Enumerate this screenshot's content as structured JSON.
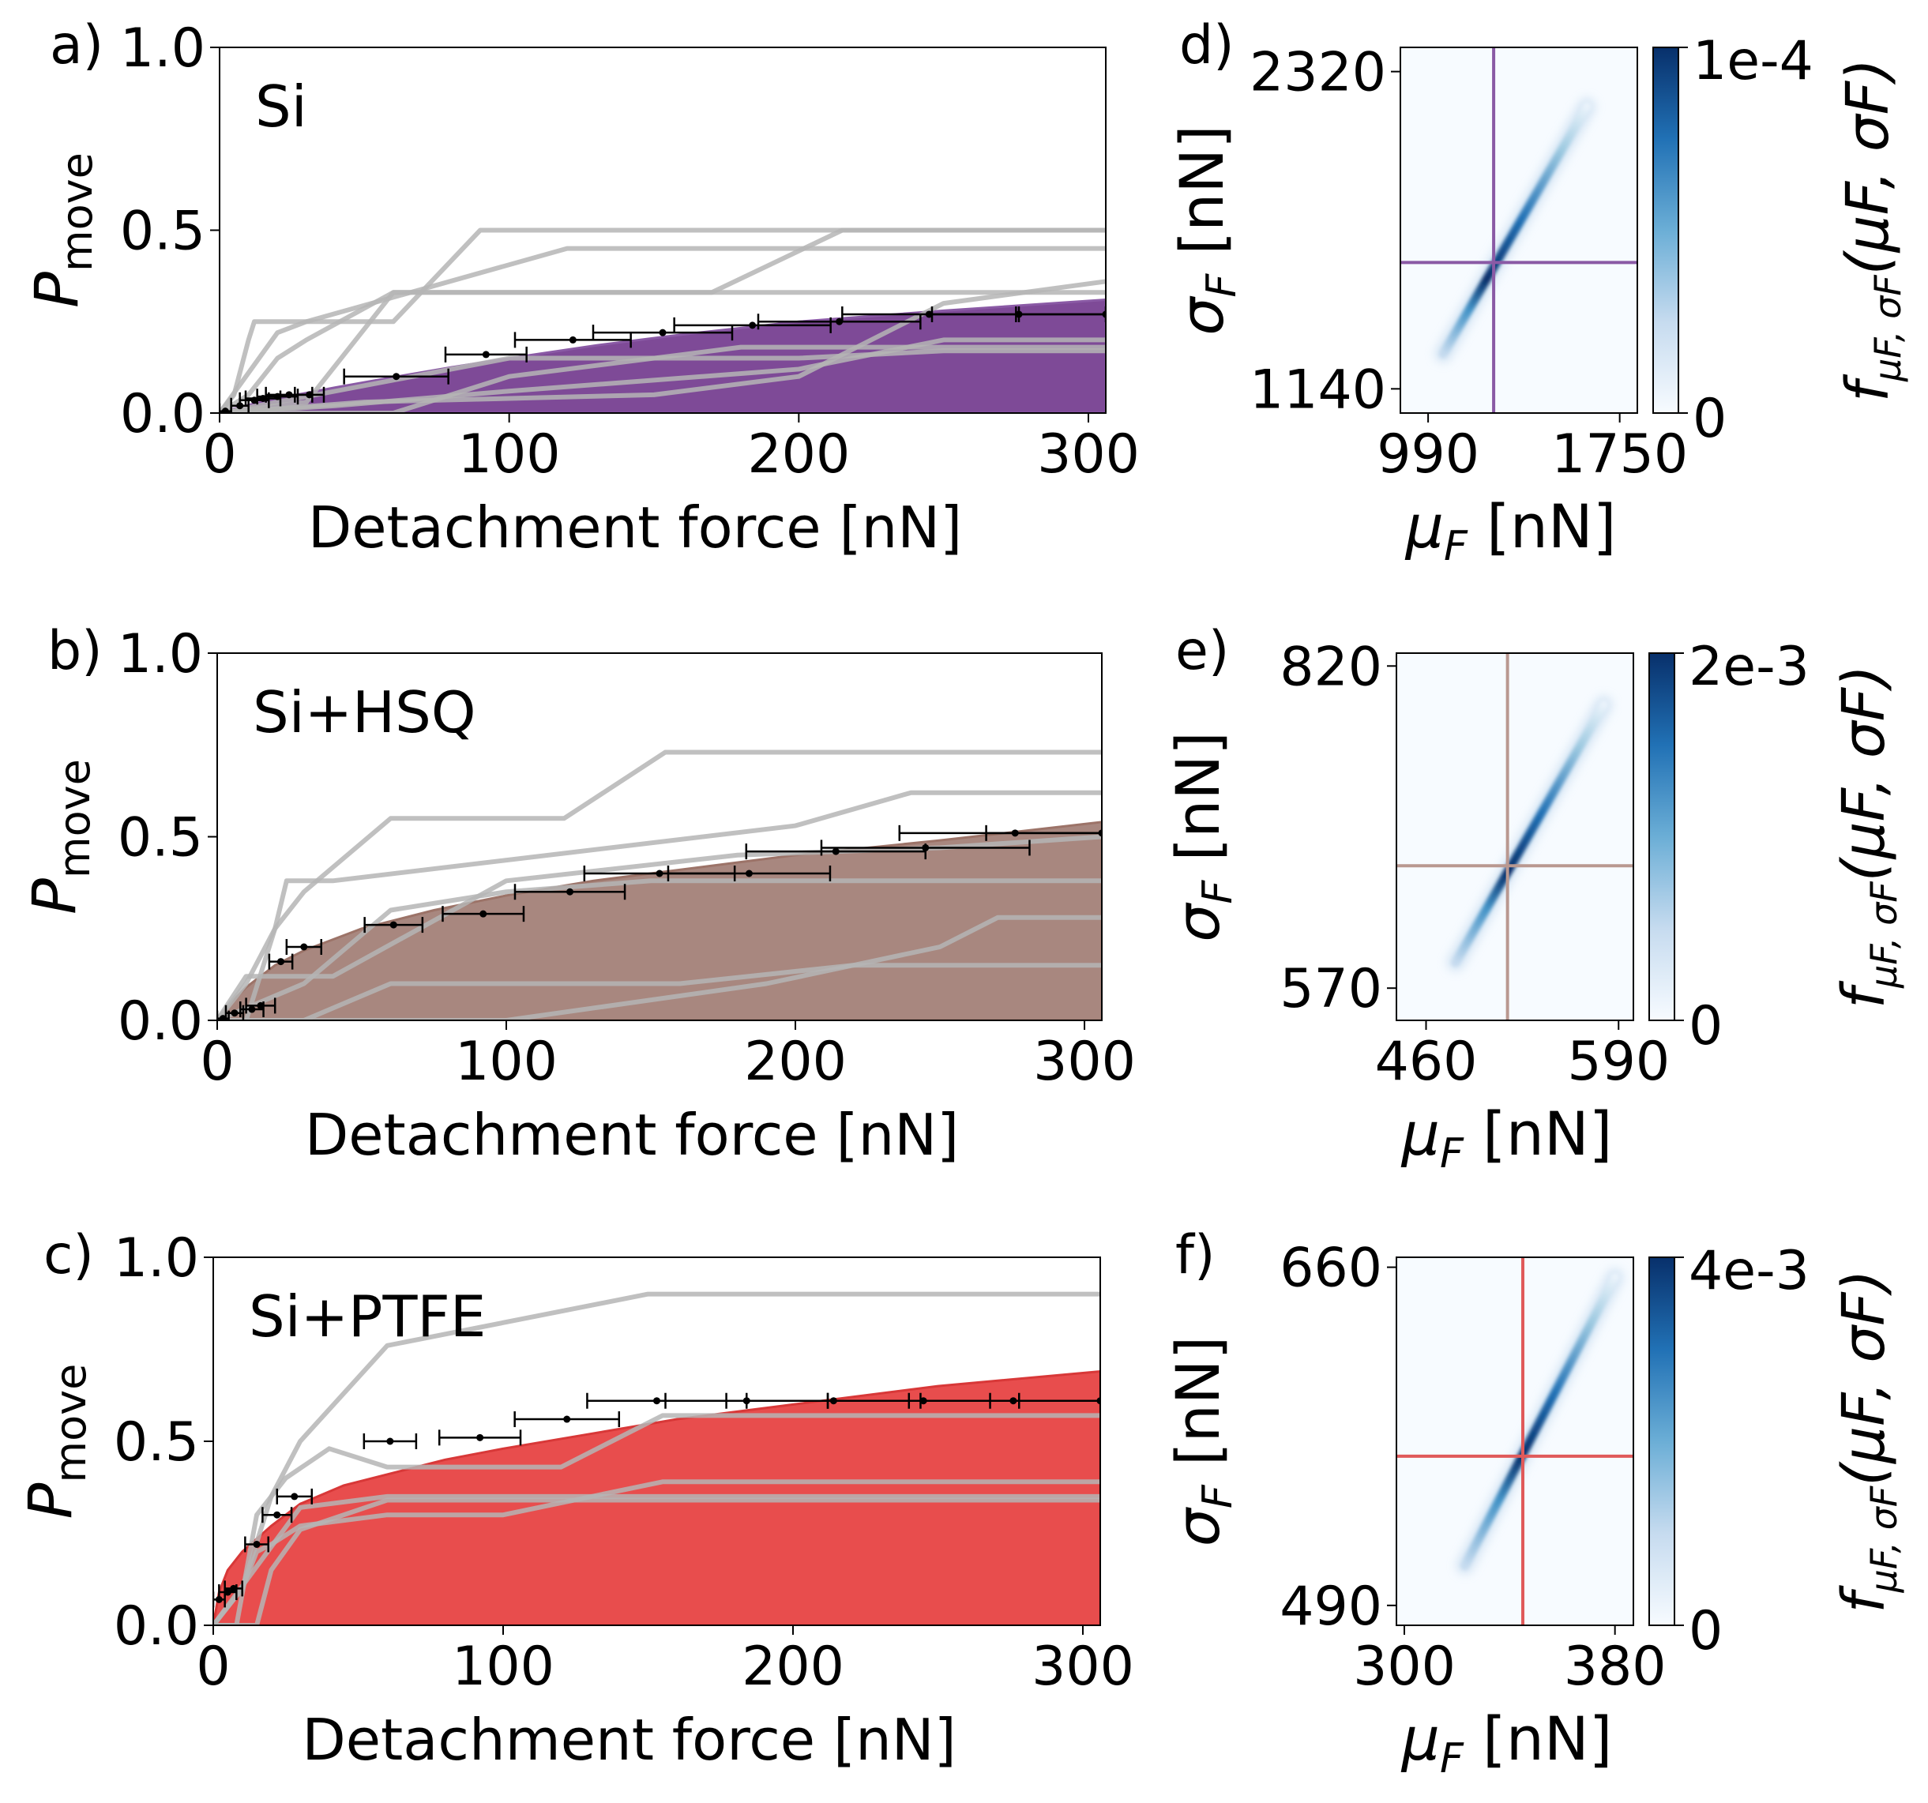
{
  "figure": {
    "xlabel": "Detachment force [nN]",
    "ylabel_main": "P",
    "ylabel_sub": "move",
    "heat_xlabel_main": "μ",
    "heat_xlabel_sub": "F",
    "heat_xlabel_unit": " [nN]",
    "heat_ylabel_main": "σ",
    "heat_ylabel_sub": "F",
    "heat_ylabel_unit": " [nN]",
    "cbar_label_f": "f",
    "cbar_label_sub": "μF, σF",
    "cbar_label_args": "(μF, σF)"
  },
  "colors": {
    "purple_fill": "#7e4a97",
    "purple_line": "#8a5aa5",
    "brown_fill": "#a8877f",
    "brown_line": "#9c7368",
    "red_fill": "#e84d4d",
    "red_line": "#d83838",
    "gray_lines": "#b5b5b5",
    "heat_dark": "#08306b",
    "heat_light": "#f7fbff"
  },
  "chart_data": [
    {
      "type": "line",
      "panel_label": "a)",
      "material": "Si",
      "xlim": [
        0,
        306
      ],
      "ylim": [
        0,
        1.0
      ],
      "xticks": [
        "0",
        "100",
        "200",
        "300"
      ],
      "yticks": [
        "0.0",
        "0.5",
        "1.0"
      ],
      "fit_curve": {
        "x": [
          0,
          5,
          10,
          20,
          40,
          60,
          80,
          100,
          130,
          160,
          200,
          250,
          306
        ],
        "y": [
          0,
          0.012,
          0.022,
          0.04,
          0.07,
          0.098,
          0.125,
          0.15,
          0.185,
          0.215,
          0.25,
          0.28,
          0.31
        ]
      },
      "gray_curves": [
        {
          "x": [
            0,
            2,
            5,
            10,
            12,
            16,
            30,
            60,
            90,
            306
          ],
          "y": [
            0,
            0.02,
            0.05,
            0.2,
            0.25,
            0.25,
            0.25,
            0.25,
            0.5,
            0.5
          ]
        },
        {
          "x": [
            0,
            10,
            20,
            30,
            60,
            306
          ],
          "y": [
            0,
            0.05,
            0.15,
            0.2,
            0.33,
            0.33
          ]
        },
        {
          "x": [
            0,
            20,
            30,
            120,
            215,
            306
          ],
          "y": [
            0,
            0.22,
            0.25,
            0.45,
            0.45,
            0.45
          ]
        },
        {
          "x": [
            0,
            30,
            60,
            120,
            170,
            215,
            306
          ],
          "y": [
            0,
            0.03,
            0.33,
            0.33,
            0.33,
            0.5,
            0.5
          ]
        },
        {
          "x": [
            0,
            50,
            150,
            200,
            250,
            306
          ],
          "y": [
            0,
            0.03,
            0.05,
            0.1,
            0.3,
            0.36
          ]
        },
        {
          "x": [
            0,
            40,
            100,
            200,
            250,
            306
          ],
          "y": [
            0,
            0.02,
            0.06,
            0.12,
            0.2,
            0.2
          ]
        },
        {
          "x": [
            0,
            100,
            200,
            250,
            306
          ],
          "y": [
            0,
            0.15,
            0.15,
            0.17,
            0.17
          ]
        },
        {
          "x": [
            0,
            60,
            100,
            180,
            250,
            306
          ],
          "y": [
            0,
            0.0,
            0.1,
            0.18,
            0.18,
            0.18
          ]
        }
      ],
      "points": [
        {
          "x": 2,
          "y": 0.005,
          "xerr": 2
        },
        {
          "x": 7,
          "y": 0.02,
          "xerr": 3
        },
        {
          "x": 12,
          "y": 0.035,
          "xerr": 5
        },
        {
          "x": 15,
          "y": 0.04,
          "xerr": 6
        },
        {
          "x": 20,
          "y": 0.045,
          "xerr": 7
        },
        {
          "x": 24,
          "y": 0.05,
          "xerr": 8
        },
        {
          "x": 31,
          "y": 0.05,
          "xerr": 5
        },
        {
          "x": 61,
          "y": 0.1,
          "xerr": 18
        },
        {
          "x": 92,
          "y": 0.16,
          "xerr": 14
        },
        {
          "x": 122,
          "y": 0.2,
          "xerr": 20
        },
        {
          "x": 153,
          "y": 0.22,
          "xerr": 24
        },
        {
          "x": 184,
          "y": 0.24,
          "xerr": 27
        },
        {
          "x": 214,
          "y": 0.25,
          "xerr": 28
        },
        {
          "x": 245,
          "y": 0.27,
          "xerr": 30
        },
        {
          "x": 276,
          "y": 0.27,
          "xerr": 30
        },
        {
          "x": 306,
          "y": 0.27,
          "xerr": 30
        }
      ]
    },
    {
      "type": "line",
      "panel_label": "b)",
      "material": "Si+HSQ",
      "xlim": [
        0,
        306
      ],
      "ylim": [
        0,
        1.0
      ],
      "xticks": [
        "0",
        "100",
        "200",
        "300"
      ],
      "yticks": [
        "0.0",
        "0.5",
        "1.0"
      ],
      "fit_curve": {
        "x": [
          0,
          5,
          10,
          20,
          30,
          50,
          75,
          100,
          130,
          160,
          200,
          250,
          306
        ],
        "y": [
          0,
          0.05,
          0.09,
          0.15,
          0.19,
          0.25,
          0.3,
          0.34,
          0.38,
          0.41,
          0.45,
          0.49,
          0.54
        ]
      },
      "gray_curves": [
        {
          "x": [
            0,
            10,
            20,
            30,
            60,
            120,
            155,
            306
          ],
          "y": [
            0,
            0.1,
            0.25,
            0.35,
            0.55,
            0.55,
            0.73,
            0.73
          ]
        },
        {
          "x": [
            0,
            10,
            20,
            24,
            40,
            200,
            240,
            306
          ],
          "y": [
            0,
            0.0,
            0.25,
            0.38,
            0.38,
            0.53,
            0.62,
            0.62
          ]
        },
        {
          "x": [
            0,
            10,
            20,
            40,
            100,
            180,
            250,
            306
          ],
          "y": [
            0,
            0.12,
            0.12,
            0.12,
            0.38,
            0.45,
            0.47,
            0.5
          ]
        },
        {
          "x": [
            0,
            15,
            30,
            60,
            100,
            150,
            306
          ],
          "y": [
            0,
            0.05,
            0.1,
            0.3,
            0.35,
            0.38,
            0.38
          ]
        },
        {
          "x": [
            0,
            30,
            60,
            100,
            130,
            160,
            220,
            306
          ],
          "y": [
            0,
            0.0,
            0.1,
            0.1,
            0.1,
            0.1,
            0.15,
            0.15
          ]
        },
        {
          "x": [
            0,
            50,
            100,
            190,
            220,
            250,
            270,
            306
          ],
          "y": [
            0,
            0.0,
            0.0,
            0.1,
            0.15,
            0.2,
            0.28,
            0.28
          ]
        }
      ],
      "points": [
        {
          "x": 2,
          "y": 0.005,
          "xerr": 2
        },
        {
          "x": 6,
          "y": 0.02,
          "xerr": 3
        },
        {
          "x": 12,
          "y": 0.03,
          "xerr": 4
        },
        {
          "x": 15,
          "y": 0.04,
          "xerr": 5
        },
        {
          "x": 22,
          "y": 0.16,
          "xerr": 4
        },
        {
          "x": 30,
          "y": 0.2,
          "xerr": 6
        },
        {
          "x": 61,
          "y": 0.26,
          "xerr": 10
        },
        {
          "x": 92,
          "y": 0.29,
          "xerr": 14
        },
        {
          "x": 122,
          "y": 0.35,
          "xerr": 19
        },
        {
          "x": 153,
          "y": 0.4,
          "xerr": 26
        },
        {
          "x": 184,
          "y": 0.4,
          "xerr": 28
        },
        {
          "x": 214,
          "y": 0.46,
          "xerr": 31
        },
        {
          "x": 245,
          "y": 0.47,
          "xerr": 36
        },
        {
          "x": 276,
          "y": 0.51,
          "xerr": 40
        },
        {
          "x": 306,
          "y": 0.51,
          "xerr": 40
        }
      ]
    },
    {
      "type": "line",
      "panel_label": "c)",
      "material": "Si+PTFE",
      "xlim": [
        0,
        306
      ],
      "ylim": [
        0,
        1.0
      ],
      "xticks": [
        "0",
        "100",
        "200",
        "300"
      ],
      "yticks": [
        "0.0",
        "0.5",
        "1.0"
      ],
      "fit_curve": {
        "x": [
          0,
          2,
          5,
          10,
          20,
          30,
          45,
          60,
          80,
          100,
          130,
          160,
          200,
          250,
          306
        ],
        "y": [
          0,
          0.09,
          0.15,
          0.2,
          0.27,
          0.33,
          0.38,
          0.41,
          0.45,
          0.48,
          0.52,
          0.56,
          0.6,
          0.65,
          0.69
        ]
      },
      "gray_curves": [
        {
          "x": [
            0,
            10,
            20,
            30,
            60,
            150,
            306
          ],
          "y": [
            0,
            0.1,
            0.35,
            0.5,
            0.76,
            0.9,
            0.9
          ]
        },
        {
          "x": [
            0,
            8,
            15,
            25,
            40,
            60,
            120,
            155,
            306
          ],
          "y": [
            0,
            0.0,
            0.3,
            0.4,
            0.48,
            0.43,
            0.43,
            0.57,
            0.57
          ]
        },
        {
          "x": [
            0,
            10,
            15,
            20,
            30,
            60,
            100,
            155,
            306
          ],
          "y": [
            0,
            0.1,
            0.2,
            0.22,
            0.27,
            0.3,
            0.3,
            0.39,
            0.39
          ]
        },
        {
          "x": [
            0,
            15,
            20,
            30,
            60,
            306
          ],
          "y": [
            0,
            0.0,
            0.15,
            0.26,
            0.34,
            0.34
          ]
        },
        {
          "x": [
            0,
            30,
            60,
            100,
            200,
            306
          ],
          "y": [
            0,
            0.32,
            0.35,
            0.35,
            0.35,
            0.35
          ]
        }
      ],
      "points": [
        {
          "x": 2,
          "y": 0.07,
          "xerr": 2
        },
        {
          "x": 5,
          "y": 0.09,
          "xerr": 3
        },
        {
          "x": 7,
          "y": 0.1,
          "xerr": 3
        },
        {
          "x": 15,
          "y": 0.22,
          "xerr": 4
        },
        {
          "x": 22,
          "y": 0.3,
          "xerr": 5
        },
        {
          "x": 28,
          "y": 0.35,
          "xerr": 6
        },
        {
          "x": 61,
          "y": 0.5,
          "xerr": 9
        },
        {
          "x": 92,
          "y": 0.51,
          "xerr": 14
        },
        {
          "x": 122,
          "y": 0.56,
          "xerr": 18
        },
        {
          "x": 153,
          "y": 0.61,
          "xerr": 24
        },
        {
          "x": 184,
          "y": 0.61,
          "xerr": 28
        },
        {
          "x": 214,
          "y": 0.61,
          "xerr": 30
        },
        {
          "x": 245,
          "y": 0.61,
          "xerr": 33
        },
        {
          "x": 276,
          "y": 0.61,
          "xerr": 36
        },
        {
          "x": 306,
          "y": 0.61,
          "xerr": 38
        }
      ]
    },
    {
      "type": "heatmap",
      "panel_label": "d)",
      "xlim": [
        880,
        1820
      ],
      "ylim": [
        1050,
        2410
      ],
      "xticks": [
        990,
        1750
      ],
      "xtick_labels": [
        "990",
        "1750"
      ],
      "yticks": [
        1140,
        2320
      ],
      "ytick_labels": [
        "1140",
        "2320"
      ],
      "best_fit": {
        "mu": 1250,
        "sigma": 1610
      },
      "ridge": {
        "mu0": 1050,
        "sigma0": 1270,
        "mu1": 1620,
        "sigma1": 2190,
        "peak_t": 0.3
      },
      "crosshair_color": "#8a5aa5",
      "colorbar_max_label": "1e-4",
      "colorbar_min_label": "0"
    },
    {
      "type": "heatmap",
      "panel_label": "e)",
      "xlim": [
        440,
        600
      ],
      "ylim": [
        545,
        830
      ],
      "xticks": [
        460,
        590
      ],
      "xtick_labels": [
        "460",
        "590"
      ],
      "yticks": [
        570,
        820
      ],
      "ytick_labels": [
        "570",
        "820"
      ],
      "best_fit": {
        "mu": 515,
        "sigma": 665
      },
      "ridge": {
        "mu0": 480,
        "sigma0": 590,
        "mu1": 580,
        "sigma1": 790,
        "peak_t": 0.35
      },
      "crosshair_color": "#b99890",
      "colorbar_max_label": "2e-3",
      "colorbar_min_label": "0"
    },
    {
      "type": "heatmap",
      "panel_label": "f)",
      "xlim": [
        297,
        387
      ],
      "ylim": [
        480,
        665
      ],
      "xticks": [
        300,
        380
      ],
      "xtick_labels": [
        "300",
        "380"
      ],
      "yticks": [
        490,
        660
      ],
      "ytick_labels": [
        "490",
        "660"
      ],
      "best_fit": {
        "mu": 345,
        "sigma": 565
      },
      "ridge": {
        "mu0": 323,
        "sigma0": 510,
        "mu1": 380,
        "sigma1": 655,
        "peak_t": 0.38
      },
      "crosshair_color": "#e05a5a",
      "colorbar_max_label": "4e-3",
      "colorbar_min_label": "0"
    }
  ]
}
